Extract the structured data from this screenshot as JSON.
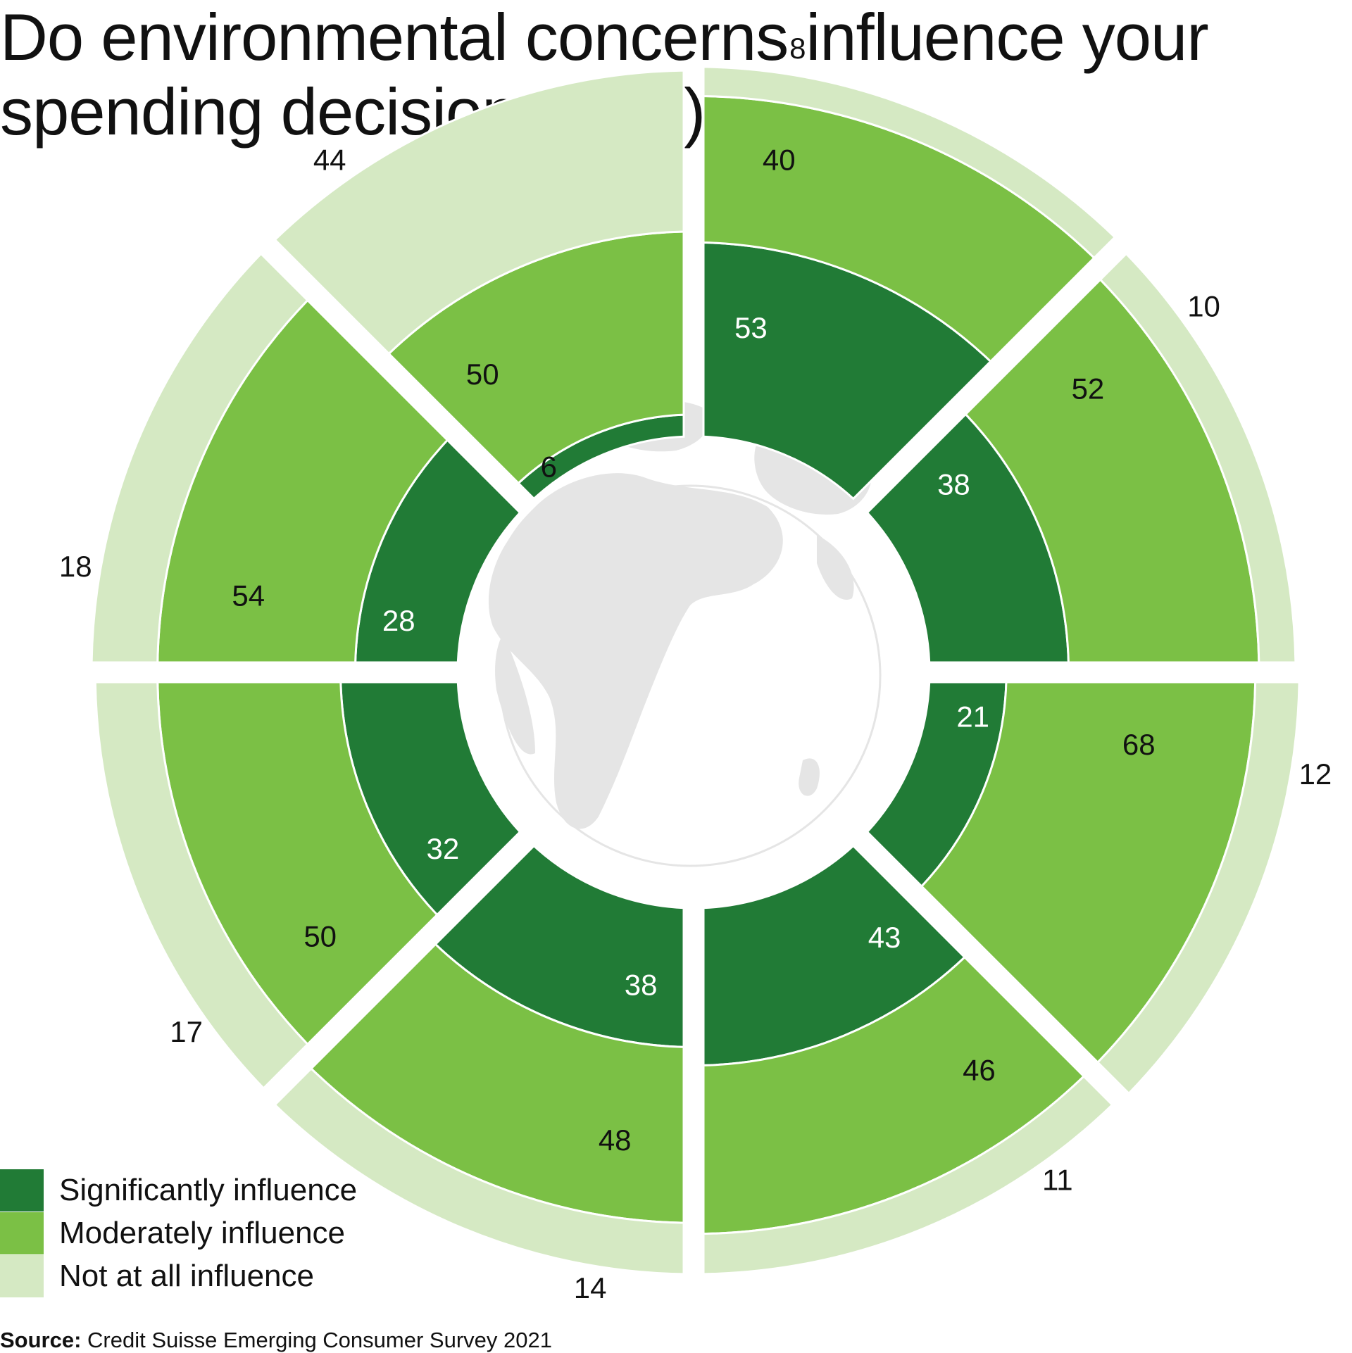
{
  "title": "Do environmental concerns influence your spending decisions? (%)",
  "source": {
    "label": "Source:",
    "text": "Credit Suisse Emerging Consumer Survey 2021"
  },
  "colors": {
    "significantly": "#217b36",
    "moderately": "#7bc045",
    "not_at_all": "#d5e9c3",
    "globe": "#e5e5e5"
  },
  "legend": [
    {
      "label": "Significantly influence",
      "color": "#217b36"
    },
    {
      "label": "Moderately influence",
      "color": "#7bc045"
    },
    {
      "label": "Not at all influence",
      "color": "#d5e9c3"
    }
  ],
  "chart_data": {
    "type": "radial-stacked-bar",
    "series": [
      {
        "name": "Significantly influence",
        "values": [
          53,
          38,
          21,
          43,
          38,
          32,
          28,
          6
        ]
      },
      {
        "name": "Moderately influence",
        "values": [
          40,
          52,
          68,
          46,
          48,
          50,
          54,
          50
        ]
      },
      {
        "name": "Not at all influence",
        "values": [
          8,
          10,
          12,
          11,
          14,
          17,
          18,
          44
        ]
      }
    ]
  }
}
